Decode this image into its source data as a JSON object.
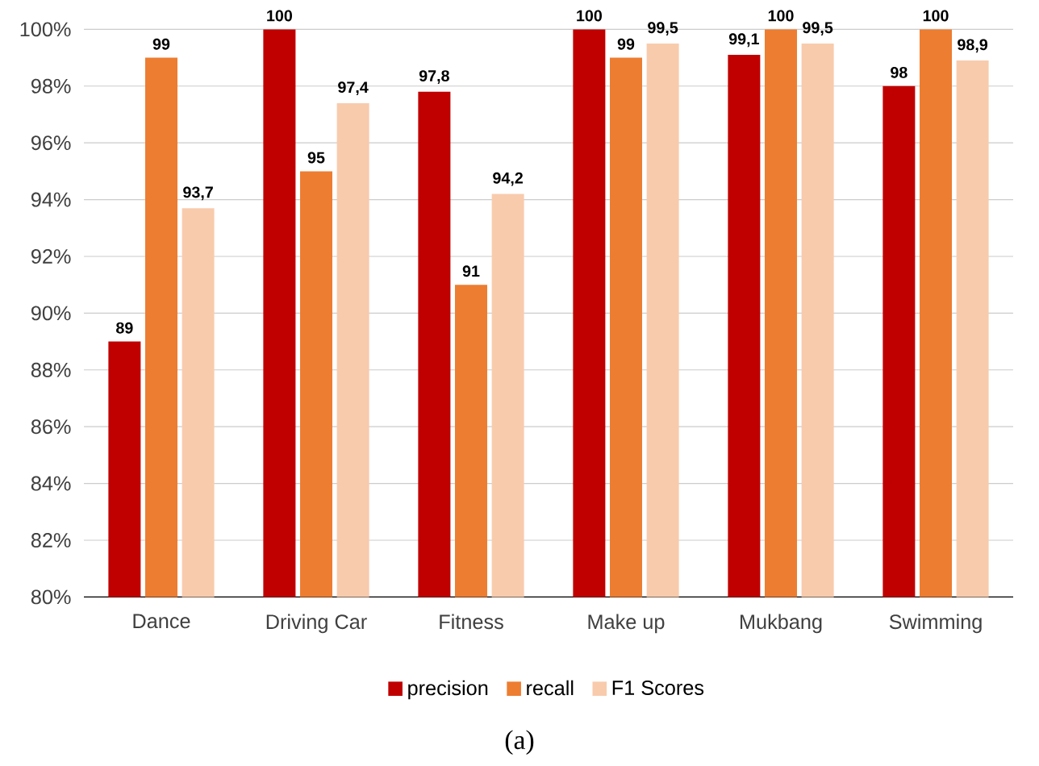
{
  "chart_data": {
    "type": "bar",
    "categories": [
      "Dance",
      "Driving Car",
      "Fitness",
      "Make up",
      "Mukbang",
      "Swimming"
    ],
    "series": [
      {
        "name": "precision",
        "color": "#c00000",
        "values": [
          89,
          100,
          97.8,
          100,
          99.1,
          98
        ],
        "value_labels": [
          "89",
          "100",
          "97,8",
          "100",
          "99,1",
          "98"
        ]
      },
      {
        "name": "recall",
        "color": "#ed7d31",
        "values": [
          99,
          95,
          91,
          99,
          100,
          100
        ],
        "value_labels": [
          "99",
          "95",
          "91",
          "99",
          "100",
          "100"
        ]
      },
      {
        "name": "F1 Scores",
        "color": "#f8cbad",
        "values": [
          93.7,
          97.4,
          94.2,
          99.5,
          99.5,
          98.9
        ],
        "value_labels": [
          "93,7",
          "97,4",
          "94,2",
          "99,5",
          "99,5",
          "98,9"
        ]
      }
    ],
    "ylim": [
      80,
      100
    ],
    "yticks": [
      {
        "value": 80,
        "label": "80%"
      },
      {
        "value": 82,
        "label": "82%"
      },
      {
        "value": 84,
        "label": "84%"
      },
      {
        "value": 86,
        "label": "86%"
      },
      {
        "value": 88,
        "label": "88%"
      },
      {
        "value": 90,
        "label": "90%"
      },
      {
        "value": 92,
        "label": "92%"
      },
      {
        "value": 94,
        "label": "94%"
      },
      {
        "value": 96,
        "label": "96%"
      },
      {
        "value": 98,
        "label": "98%"
      },
      {
        "value": 100,
        "label": "100%"
      }
    ],
    "grid": "y",
    "legend": "bottom",
    "annotations": [
      "(a)"
    ]
  }
}
